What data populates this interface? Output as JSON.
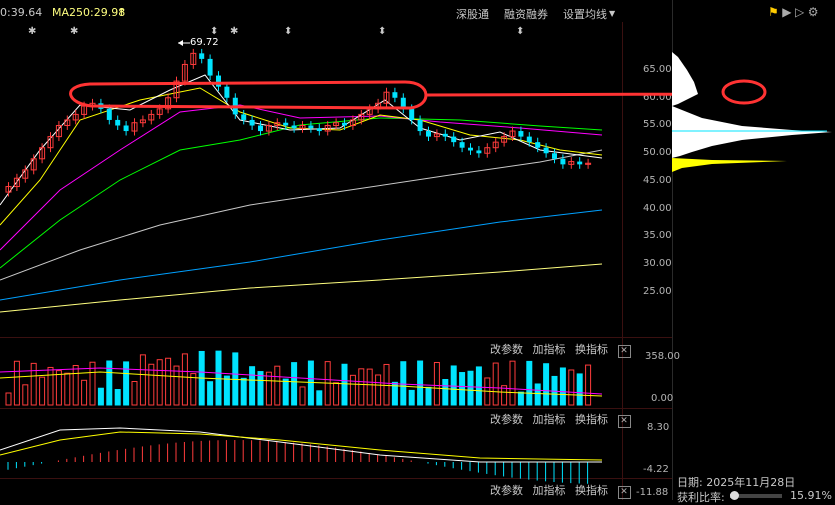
{
  "top_bar": {
    "ma_partial": "0:39.64",
    "ma250": "MA250:29.98",
    "arrow": "↑",
    "buttons": [
      "深股通",
      "融资融券",
      "设置均线"
    ]
  },
  "price_axis": {
    "ticks": [
      "65.00",
      "60.00",
      "55.00",
      "50.00",
      "45.00",
      "40.00",
      "35.00",
      "30.00",
      "25.00"
    ],
    "peak_label": "69.72"
  },
  "panel_tools": {
    "modify": "改参数",
    "add": "加指标",
    "switch": "换指标",
    "close": "✕"
  },
  "volume_axis": {
    "ticks": [
      "358.00",
      "0.00"
    ]
  },
  "macd_axis": {
    "ticks": [
      "8.30",
      "-4.22"
    ]
  },
  "bottom_axis": {
    "partial": "-11.88"
  },
  "right_panel": {
    "date_label": "日期: 2025年11月28日",
    "ratio_label": "获利比率:",
    "ratio_value": "15.91%",
    "ratio_slider": 0.16
  },
  "colors": {
    "up": "#ff3c3c",
    "down": "#00e4ff",
    "ma5": "#ffffff",
    "ma10": "#ffff00",
    "ma20": "#ff00ff",
    "ma30": "#00ff00",
    "ma60": "#c8c8c8",
    "ma120": "#00a0ff",
    "ma250": "#ffff80",
    "chip": "#ffffff",
    "chip_cost": "#ffff00",
    "annotation": "#ff3333"
  },
  "icons": [
    "flag-icon",
    "play-icon",
    "play-outline-icon",
    "gear-icon",
    "star-marker-icon",
    "diamond-marker-icon"
  ]
}
